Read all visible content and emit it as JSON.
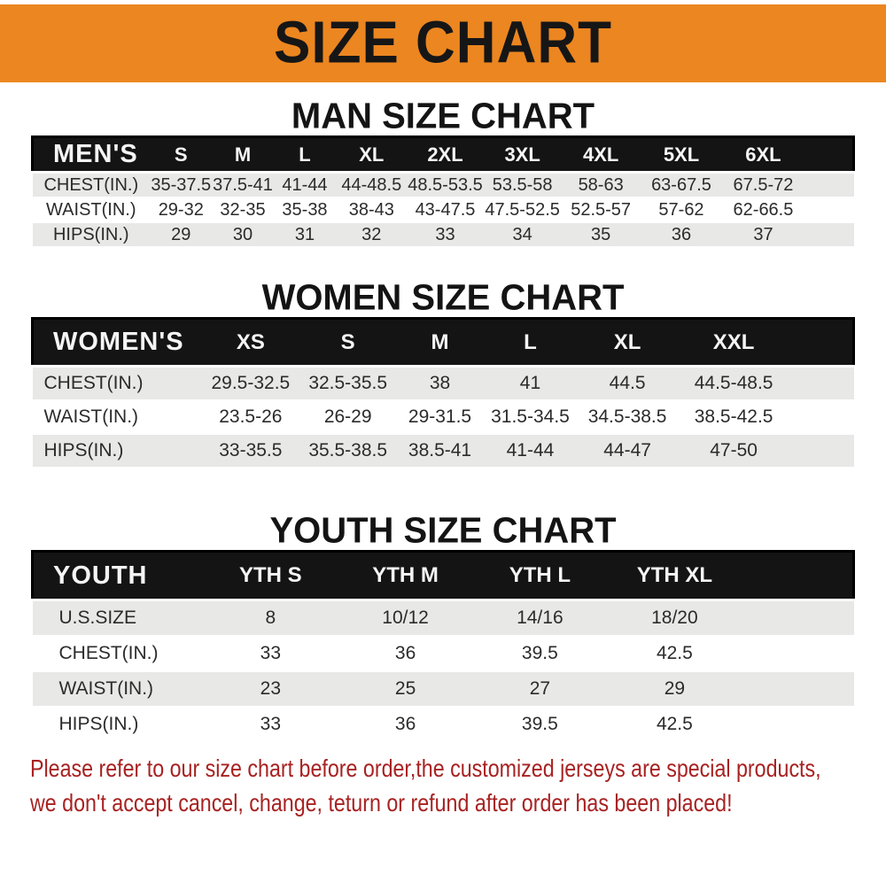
{
  "banner": {
    "title": "SIZE CHART"
  },
  "sections": [
    {
      "heading": "MAN SIZE CHART",
      "header_label": "MEN'S",
      "columns": [
        "S",
        "M",
        "L",
        "XL",
        "2XL",
        "3XL",
        "4XL",
        "5XL",
        "6XL"
      ],
      "rows": [
        {
          "label": "CHEST(IN.)",
          "values": [
            "35-37.5",
            "37.5-41",
            "41-44",
            "44-48.5",
            "48.5-53.5",
            "53.5-58",
            "58-63",
            "63-67.5",
            "67.5-72"
          ]
        },
        {
          "label": "WAIST(IN.)",
          "values": [
            "29-32",
            "32-35",
            "35-38",
            "38-43",
            "43-47.5",
            "47.5-52.5",
            "52.5-57",
            "57-62",
            "62-66.5"
          ]
        },
        {
          "label": "HIPS(IN.)",
          "values": [
            "29",
            "30",
            "31",
            "32",
            "33",
            "34",
            "35",
            "36",
            "37"
          ]
        }
      ]
    },
    {
      "heading": "WOMEN SIZE CHART",
      "header_label": "WOMEN'S",
      "columns": [
        "XS",
        "S",
        "M",
        "L",
        "XL",
        "XXL"
      ],
      "rows": [
        {
          "label": "CHEST(IN.)",
          "values": [
            "29.5-32.5",
            "32.5-35.5",
            "38",
            "41",
            "44.5",
            "44.5-48.5"
          ]
        },
        {
          "label": "WAIST(IN.)",
          "values": [
            "23.5-26",
            "26-29",
            "29-31.5",
            "31.5-34.5",
            "34.5-38.5",
            "38.5-42.5"
          ]
        },
        {
          "label": "HIPS(IN.)",
          "values": [
            "33-35.5",
            "35.5-38.5",
            "38.5-41",
            "41-44",
            "44-47",
            "47-50"
          ]
        }
      ]
    },
    {
      "heading": "YOUTH SIZE CHART",
      "header_label": "YOUTH",
      "columns": [
        "YTH S",
        "YTH M",
        "YTH L",
        "YTH XL"
      ],
      "rows": [
        {
          "label": "U.S.SIZE",
          "values": [
            "8",
            "10/12",
            "14/16",
            "18/20"
          ]
        },
        {
          "label": "CHEST(IN.)",
          "values": [
            "33",
            "36",
            "39.5",
            "42.5"
          ]
        },
        {
          "label": "WAIST(IN.)",
          "values": [
            "23",
            "25",
            "27",
            "29"
          ]
        },
        {
          "label": "HIPS(IN.)",
          "values": [
            "33",
            "36",
            "39.5",
            "42.5"
          ]
        }
      ]
    }
  ],
  "footer": {
    "line1": "Please refer to our size chart before order,the customized jerseys are special products,",
    "line2": "we don't accept cancel, change, teturn or refund after order has been placed!"
  },
  "colors": {
    "banner_bg": "#ec8620",
    "bar_bg": "#141414",
    "row_alt": "#e8e8e6",
    "footer_text": "#a82222"
  }
}
